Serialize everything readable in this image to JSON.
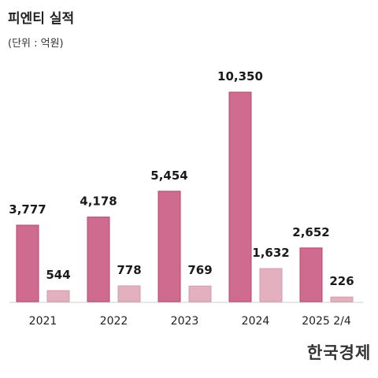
{
  "title": "피엔티 실적",
  "unit_label": "(단위 : 억원)",
  "logo_text": "한국경제",
  "chart_data": {
    "type": "bar",
    "categories": [
      "2021",
      "2022",
      "2023",
      "2024",
      "2025 2/4"
    ],
    "series": [
      {
        "values": [
          3777,
          4178,
          5454,
          10350,
          2652
        ],
        "labels": [
          "3,777",
          "4,178",
          "5,454",
          "10,350",
          "2,652"
        ],
        "color": "#cf6b8e"
      },
      {
        "values": [
          544,
          778,
          769,
          1632,
          226
        ],
        "labels": [
          "544",
          "778",
          "769",
          "1,632",
          "226"
        ],
        "color": "#e3b0bf"
      }
    ],
    "ylim": [
      0,
      10350
    ],
    "grid": false,
    "legend": "none"
  }
}
